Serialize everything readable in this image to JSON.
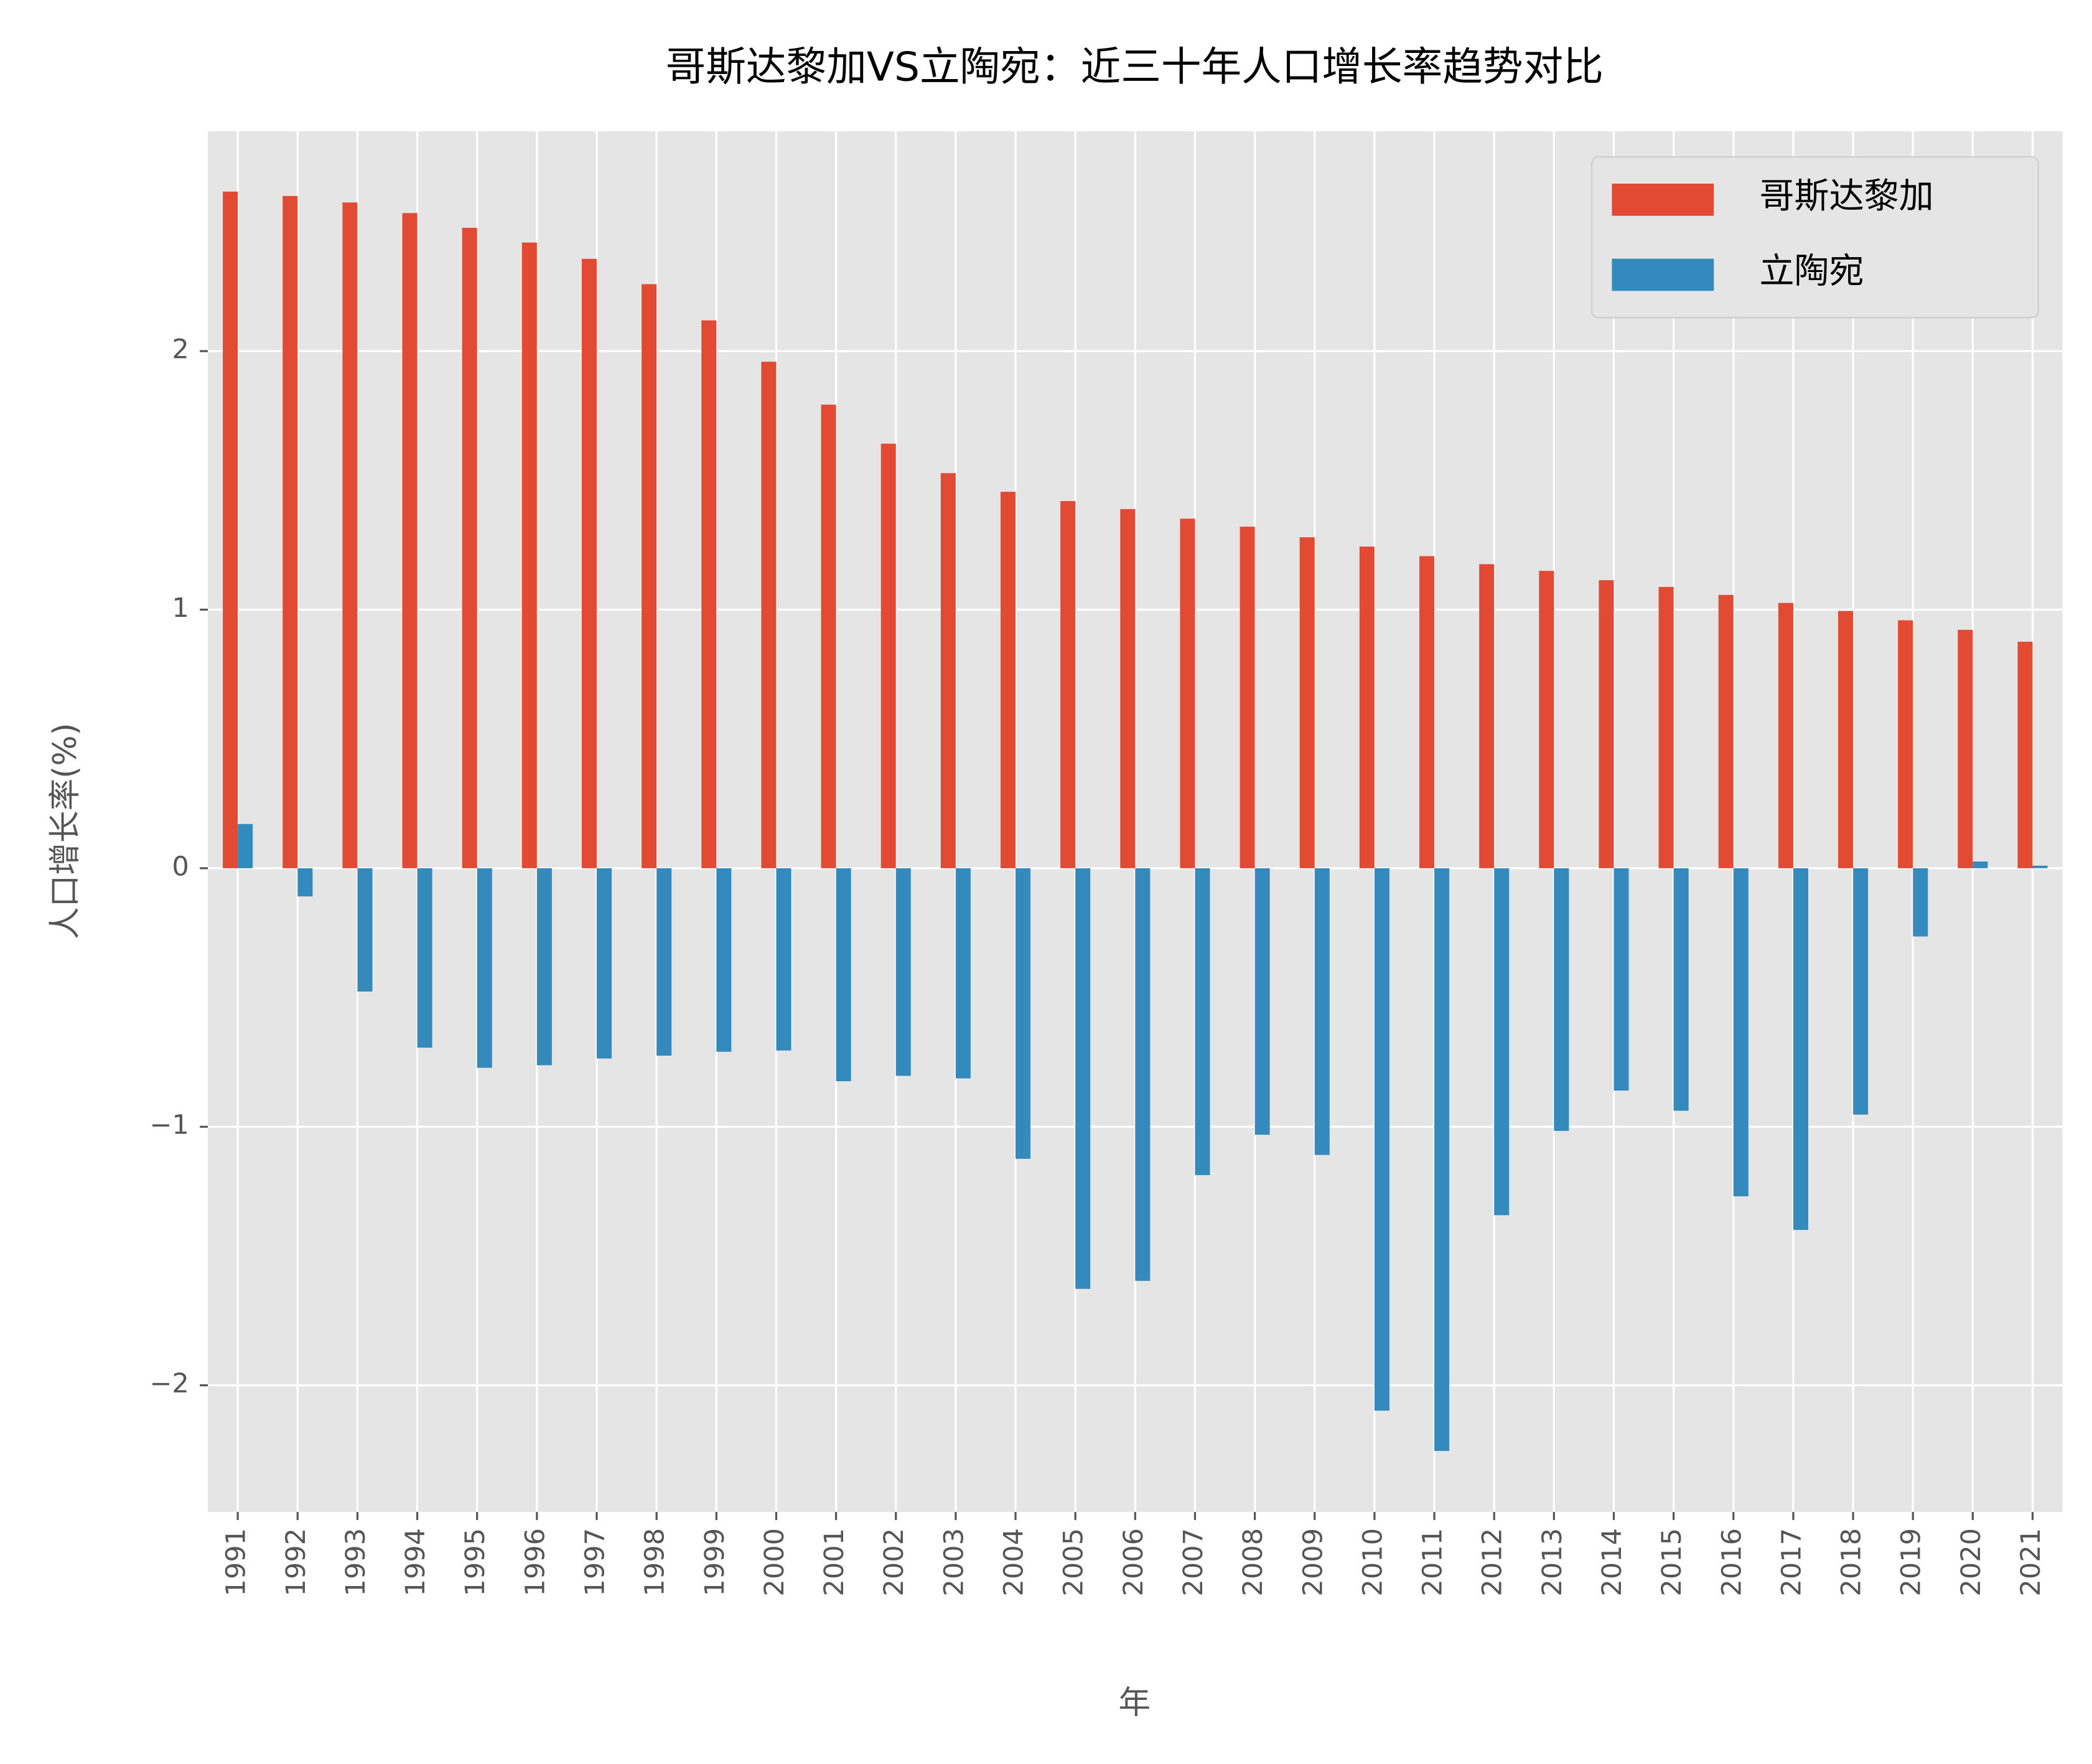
{
  "chart_data": {
    "type": "bar",
    "title": "哥斯达黎加VS立陶宛：近三十年人口增长率趋势对比",
    "xlabel": "年",
    "ylabel": "人口增长率(%)",
    "categories": [
      "1991",
      "1992",
      "1993",
      "1994",
      "1995",
      "1996",
      "1997",
      "1998",
      "1999",
      "2000",
      "2001",
      "2002",
      "2003",
      "2004",
      "2005",
      "2006",
      "2007",
      "2008",
      "2009",
      "2010",
      "2011",
      "2012",
      "2013",
      "2014",
      "2015",
      "2016",
      "2017",
      "2018",
      "2019",
      "2020",
      "2021"
    ],
    "series": [
      {
        "name": "哥斯达黎加",
        "color": "#e24a33",
        "values": [
          2.617,
          2.6,
          2.575,
          2.534,
          2.477,
          2.42,
          2.357,
          2.259,
          2.119,
          1.959,
          1.793,
          1.642,
          1.528,
          1.456,
          1.42,
          1.389,
          1.352,
          1.321,
          1.28,
          1.244,
          1.207,
          1.176,
          1.15,
          1.114,
          1.088,
          1.057,
          1.026,
          0.995,
          0.959,
          0.922,
          0.876
        ]
      },
      {
        "name": "立陶宛",
        "color": "#348abd",
        "values": [
          0.171,
          -0.109,
          -0.477,
          -0.694,
          -0.772,
          -0.762,
          -0.736,
          -0.725,
          -0.71,
          -0.705,
          -0.824,
          -0.803,
          -0.813,
          -1.124,
          -1.627,
          -1.596,
          -1.187,
          -1.031,
          -1.109,
          -2.098,
          -2.254,
          -1.342,
          -1.016,
          -0.86,
          -0.938,
          -1.269,
          -1.399,
          -0.953,
          -0.264,
          0.026,
          0.01
        ]
      }
    ],
    "ylim": [
      -2.49,
      2.85
    ],
    "yticks": [
      {
        "value": -2,
        "label": "−2"
      },
      {
        "value": -1,
        "label": "−1"
      },
      0,
      1,
      2
    ],
    "grid": true,
    "legend": "upper right"
  }
}
